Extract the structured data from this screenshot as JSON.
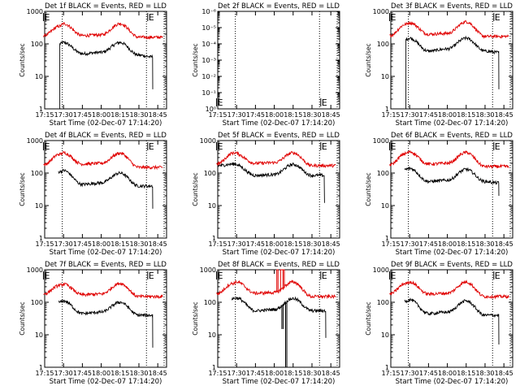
{
  "colors": {
    "events": "#000000",
    "lld": "#e00000",
    "background": "#ffffff"
  },
  "legend_text": "BLACK = Events, RED = LLD",
  "chart_data": [
    {
      "type": "line",
      "title": "Det 1f BLACK = Events, RED = LLD",
      "xlabel": "Start Time (02-Dec-07 17:14:20)",
      "ylabel": "Counts/sec",
      "x_ticks": [
        "17:15",
        "17:30",
        "17:45",
        "18:00",
        "18:15",
        "18:30",
        "18:45"
      ],
      "y_ticks": [
        "1",
        "10",
        "100",
        "1000"
      ],
      "y_scale": "log",
      "ylim": [
        1,
        1000
      ],
      "xlim_minutes": [
        1035,
        1132
      ],
      "markers": [
        {
          "time": "17:14",
          "label": "E"
        },
        {
          "time": "18:37",
          "label": "E"
        }
      ],
      "dotted_lines": [
        "17:29",
        "18:36"
      ],
      "series": [
        {
          "name": "Events",
          "color": "black",
          "start": "17:26",
          "end": "18:41",
          "points": [
            [
              "17:27",
              100
            ],
            [
              "17:30",
              110
            ],
            [
              "17:45",
              50
            ],
            [
              "18:00",
              55
            ],
            [
              "18:15",
              110
            ],
            [
              "18:30",
              45
            ],
            [
              "18:40",
              40
            ]
          ],
          "drop_end": 4,
          "drop_start": 1
        },
        {
          "name": "LLD",
          "color": "red",
          "start": "17:14",
          "end": "18:49",
          "points": [
            [
              "17:14",
              180
            ],
            [
              "17:27",
              350
            ],
            [
              "17:30",
              420
            ],
            [
              "17:45",
              180
            ],
            [
              "18:00",
              190
            ],
            [
              "18:15",
              420
            ],
            [
              "18:30",
              160
            ],
            [
              "18:49",
              160
            ]
          ]
        }
      ]
    },
    {
      "type": "line",
      "title": "Det 2f BLACK = Events, RED = LLD",
      "xlabel": "Start Time (02-Dec-07 17:14:20)",
      "ylabel": "Counts/sec",
      "x_ticks": [
        "17:15",
        "17:30",
        "17:45",
        "18:00",
        "18:15",
        "18:30",
        "18:45"
      ],
      "y_ticks": [
        "10⁰",
        "10⁻¹",
        "10⁻²",
        "10⁻³",
        "10⁻⁴",
        "10⁻⁵",
        "10⁻⁶"
      ],
      "y_scale": "log",
      "ylim": [
        1e-06,
        1
      ],
      "xlim_minutes": [
        1035,
        1132
      ],
      "markers": [
        {
          "time": "17:14",
          "label": "E"
        },
        {
          "time": "18:37",
          "label": "E"
        }
      ],
      "dotted_lines": [
        "17:29",
        "18:36"
      ],
      "series": []
    },
    {
      "type": "line",
      "title": "Det 3f BLACK = Events, RED = LLD",
      "xlabel": "Start Time (02-Dec-07 17:14:20)",
      "ylabel": "Counts/sec",
      "x_ticks": [
        "17:15",
        "17:30",
        "17:45",
        "18:00",
        "18:15",
        "18:30",
        "18:45"
      ],
      "y_ticks": [
        "1",
        "10",
        "100",
        "1000"
      ],
      "y_scale": "log",
      "ylim": [
        1,
        1000
      ],
      "xlim_minutes": [
        1035,
        1132
      ],
      "markers": [
        {
          "time": "17:14",
          "label": "E"
        },
        {
          "time": "18:37",
          "label": "E"
        }
      ],
      "dotted_lines": [
        "17:29",
        "18:36"
      ],
      "series": [
        {
          "name": "Events",
          "color": "black",
          "start": "17:26",
          "end": "18:41",
          "points": [
            [
              "17:27",
              140
            ],
            [
              "17:30",
              150
            ],
            [
              "17:45",
              60
            ],
            [
              "18:00",
              70
            ],
            [
              "18:15",
              150
            ],
            [
              "18:30",
              60
            ],
            [
              "18:40",
              55
            ]
          ],
          "drop_end": 4,
          "drop_start": 1
        },
        {
          "name": "LLD",
          "color": "red",
          "start": "17:14",
          "end": "18:49",
          "points": [
            [
              "17:14",
              180
            ],
            [
              "17:27",
              400
            ],
            [
              "17:30",
              450
            ],
            [
              "17:45",
              200
            ],
            [
              "18:00",
              210
            ],
            [
              "18:15",
              480
            ],
            [
              "18:30",
              170
            ],
            [
              "18:49",
              170
            ]
          ]
        }
      ]
    },
    {
      "type": "line",
      "title": "Det 4f BLACK = Events, RED = LLD",
      "xlabel": "Start Time (02-Dec-07 17:14:20)",
      "ylabel": "Counts/sec",
      "x_ticks": [
        "17:15",
        "17:30",
        "17:45",
        "18:00",
        "18:15",
        "18:30",
        "18:45"
      ],
      "y_ticks": [
        "1",
        "10",
        "100",
        "1000"
      ],
      "y_scale": "log",
      "ylim": [
        1,
        1000
      ],
      "xlim_minutes": [
        1035,
        1132
      ],
      "markers": [
        {
          "time": "17:14",
          "label": "E"
        },
        {
          "time": "18:37",
          "label": "E"
        }
      ],
      "dotted_lines": [
        "17:29",
        "18:36"
      ],
      "series": [
        {
          "name": "Events",
          "color": "black",
          "start": "17:26",
          "end": "18:41",
          "points": [
            [
              "17:27",
              110
            ],
            [
              "17:30",
              120
            ],
            [
              "17:45",
              45
            ],
            [
              "18:00",
              50
            ],
            [
              "18:15",
              100
            ],
            [
              "18:30",
              40
            ],
            [
              "18:40",
              40
            ]
          ],
          "drop_end": 8
        },
        {
          "name": "LLD",
          "color": "red",
          "start": "17:14",
          "end": "18:49",
          "points": [
            [
              "17:14",
              180
            ],
            [
              "17:27",
              380
            ],
            [
              "17:30",
              420
            ],
            [
              "17:45",
              190
            ],
            [
              "18:00",
              200
            ],
            [
              "18:15",
              410
            ],
            [
              "18:30",
              150
            ],
            [
              "18:49",
              150
            ]
          ]
        }
      ]
    },
    {
      "type": "line",
      "title": "Det 5f BLACK = Events, RED = LLD",
      "xlabel": "Start Time (02-Dec-07 17:14:20)",
      "ylabel": "Counts/sec",
      "x_ticks": [
        "17:15",
        "17:30",
        "17:45",
        "18:00",
        "18:15",
        "18:30",
        "18:45"
      ],
      "y_ticks": [
        "1",
        "10",
        "100",
        "1000"
      ],
      "y_scale": "log",
      "ylim": [
        1,
        1000
      ],
      "xlim_minutes": [
        1035,
        1132
      ],
      "markers": [
        {
          "time": "17:14",
          "label": "E"
        },
        {
          "time": "18:37",
          "label": "E"
        }
      ],
      "dotted_lines": [
        "17:29",
        "18:36"
      ],
      "series": [
        {
          "name": "Events",
          "color": "black",
          "start": "17:15",
          "end": "18:40",
          "points": [
            [
              "17:15",
              170
            ],
            [
              "17:28",
              190
            ],
            [
              "17:45",
              85
            ],
            [
              "18:00",
              90
            ],
            [
              "18:15",
              185
            ],
            [
              "18:30",
              85
            ],
            [
              "18:38",
              85
            ]
          ],
          "drop_end": 12
        },
        {
          "name": "LLD",
          "color": "red",
          "start": "17:14",
          "end": "18:49",
          "points": [
            [
              "17:14",
              190
            ],
            [
              "17:28",
              420
            ],
            [
              "17:45",
              200
            ],
            [
              "18:00",
              210
            ],
            [
              "18:15",
              420
            ],
            [
              "18:30",
              170
            ],
            [
              "18:49",
              170
            ]
          ]
        }
      ]
    },
    {
      "type": "line",
      "title": "Det 6f BLACK = Events, RED = LLD",
      "xlabel": "Start Time (02-Dec-07 17:14:20)",
      "ylabel": "Counts/sec",
      "x_ticks": [
        "17:15",
        "17:30",
        "17:45",
        "18:00",
        "18:15",
        "18:30",
        "18:45"
      ],
      "y_ticks": [
        "1",
        "10",
        "100",
        "1000"
      ],
      "y_scale": "log",
      "ylim": [
        1,
        1000
      ],
      "xlim_minutes": [
        1035,
        1132
      ],
      "markers": [
        {
          "time": "17:14",
          "label": "E"
        },
        {
          "time": "18:37",
          "label": "E"
        }
      ],
      "dotted_lines": [
        "17:29",
        "18:36"
      ],
      "series": [
        {
          "name": "Events",
          "color": "black",
          "start": "17:26",
          "end": "18:41",
          "points": [
            [
              "17:27",
              130
            ],
            [
              "17:30",
              140
            ],
            [
              "17:45",
              55
            ],
            [
              "18:00",
              60
            ],
            [
              "18:15",
              130
            ],
            [
              "18:30",
              55
            ],
            [
              "18:40",
              50
            ]
          ],
          "drop_end": 20
        },
        {
          "name": "LLD",
          "color": "red",
          "start": "17:14",
          "end": "18:49",
          "points": [
            [
              "17:14",
              180
            ],
            [
              "17:27",
              400
            ],
            [
              "17:30",
              450
            ],
            [
              "17:45",
              190
            ],
            [
              "18:00",
              200
            ],
            [
              "18:15",
              430
            ],
            [
              "18:30",
              160
            ],
            [
              "18:49",
              160
            ]
          ]
        }
      ]
    },
    {
      "type": "line",
      "title": "Det 7f BLACK = Events, RED = LLD",
      "xlabel": "Start Time (02-Dec-07 17:14:20)",
      "ylabel": "Counts/sec",
      "x_ticks": [
        "17:15",
        "17:30",
        "17:45",
        "18:00",
        "18:15",
        "18:30",
        "18:45"
      ],
      "y_ticks": [
        "1",
        "10",
        "100",
        "1000"
      ],
      "y_scale": "log",
      "ylim": [
        1,
        1000
      ],
      "xlim_minutes": [
        1035,
        1132
      ],
      "markers": [
        {
          "time": "17:14",
          "label": "E"
        },
        {
          "time": "18:37",
          "label": "E"
        }
      ],
      "dotted_lines": [
        "17:29",
        "18:36"
      ],
      "series": [
        {
          "name": "Events",
          "color": "black",
          "start": "17:26",
          "end": "18:41",
          "points": [
            [
              "17:27",
              100
            ],
            [
              "17:30",
              110
            ],
            [
              "17:45",
              45
            ],
            [
              "18:00",
              50
            ],
            [
              "18:15",
              100
            ],
            [
              "18:30",
              40
            ],
            [
              "18:40",
              40
            ]
          ],
          "drop_end": 4
        },
        {
          "name": "LLD",
          "color": "red",
          "start": "17:14",
          "end": "18:49",
          "points": [
            [
              "17:14",
              180
            ],
            [
              "17:27",
              330
            ],
            [
              "17:30",
              360
            ],
            [
              "17:45",
              170
            ],
            [
              "18:00",
              180
            ],
            [
              "18:15",
              380
            ],
            [
              "18:30",
              150
            ],
            [
              "18:49",
              150
            ]
          ]
        }
      ]
    },
    {
      "type": "line",
      "title": "Det 8f BLACK = Events, RED = LLD",
      "xlabel": "Start Time (02-Dec-07 17:14:20)",
      "ylabel": "Counts/sec",
      "x_ticks": [
        "17:15",
        "17:30",
        "17:45",
        "18:00",
        "18:15",
        "18:30",
        "18:45"
      ],
      "y_ticks": [
        "1",
        "10",
        "100",
        "1000"
      ],
      "y_scale": "log",
      "ylim": [
        1,
        1000
      ],
      "xlim_minutes": [
        1035,
        1132
      ],
      "markers": [
        {
          "time": "17:14",
          "label": "E"
        },
        {
          "time": "18:37",
          "label": "E"
        }
      ],
      "dotted_lines": [
        "17:29",
        "18:36"
      ],
      "series": [
        {
          "name": "Events",
          "color": "black",
          "start": "17:26",
          "end": "18:41",
          "points": [
            [
              "17:27",
              130
            ],
            [
              "17:30",
              135
            ],
            [
              "17:45",
              55
            ],
            [
              "18:00",
              60
            ],
            [
              "18:15",
              130
            ],
            [
              "18:30",
              55
            ],
            [
              "18:40",
              55
            ]
          ],
          "drop_end": 8,
          "dropouts": [
            [
              "18:06",
              15
            ],
            [
              "18:07",
              15
            ],
            [
              "18:09",
              1
            ],
            [
              "18:10",
              1
            ]
          ]
        },
        {
          "name": "LLD",
          "color": "red",
          "start": "17:14",
          "end": "18:49",
          "points": [
            [
              "17:14",
              180
            ],
            [
              "17:27",
              380
            ],
            [
              "17:30",
              420
            ],
            [
              "17:45",
              190
            ],
            [
              "18:00",
              200
            ],
            [
              "18:15",
              420
            ],
            [
              "18:30",
              150
            ],
            [
              "18:49",
              150
            ]
          ],
          "spikes": [
            [
              "18:02",
              "18:03",
              1000
            ],
            [
              "18:05",
              "18:07",
              1000
            ],
            [
              "18:07",
              "18:08",
              1000
            ]
          ]
        }
      ]
    },
    {
      "type": "line",
      "title": "Det 9f BLACK = Events, RED = LLD",
      "xlabel": "Start Time (02-Dec-07 17:14:20)",
      "ylabel": "Counts/sec",
      "x_ticks": [
        "17:15",
        "17:30",
        "17:45",
        "18:00",
        "18:15",
        "18:30",
        "18:45"
      ],
      "y_ticks": [
        "1",
        "10",
        "100",
        "1000"
      ],
      "y_scale": "log",
      "ylim": [
        1,
        1000
      ],
      "xlim_minutes": [
        1035,
        1132
      ],
      "markers": [
        {
          "time": "17:14",
          "label": "E"
        },
        {
          "time": "18:37",
          "label": "E"
        }
      ],
      "dotted_lines": [
        "17:29",
        "18:36"
      ],
      "series": [
        {
          "name": "Events",
          "color": "black",
          "start": "17:26",
          "end": "18:41",
          "points": [
            [
              "17:27",
              110
            ],
            [
              "17:30",
              120
            ],
            [
              "17:45",
              45
            ],
            [
              "18:00",
              50
            ],
            [
              "18:15",
              110
            ],
            [
              "18:30",
              40
            ],
            [
              "18:40",
              40
            ]
          ],
          "drop_end": 5
        },
        {
          "name": "LLD",
          "color": "red",
          "start": "17:14",
          "end": "18:49",
          "points": [
            [
              "17:14",
              180
            ],
            [
              "17:27",
              380
            ],
            [
              "17:30",
              420
            ],
            [
              "17:45",
              180
            ],
            [
              "18:00",
              190
            ],
            [
              "18:15",
              420
            ],
            [
              "18:30",
              150
            ],
            [
              "18:49",
              150
            ]
          ]
        }
      ]
    }
  ]
}
